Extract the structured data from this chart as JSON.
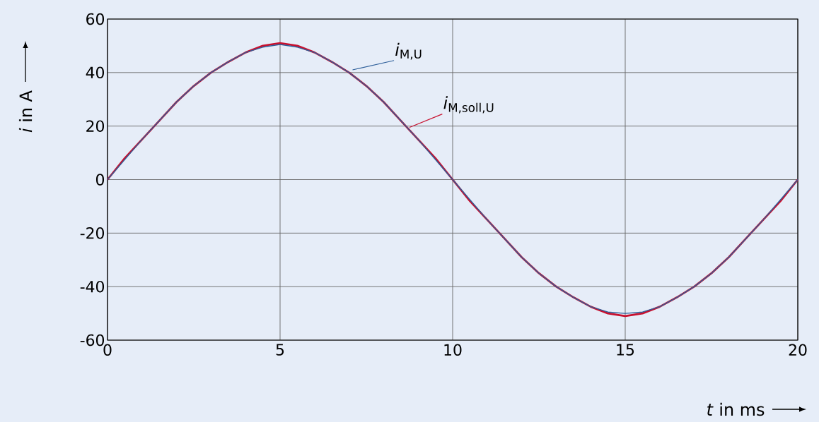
{
  "chart_data": {
    "type": "line",
    "xlabel": "*t* in ms",
    "ylabel": "*i* in A",
    "x": [
      0,
      0.5,
      1,
      1.5,
      2,
      2.5,
      3,
      3.5,
      4,
      4.5,
      5,
      5.5,
      6,
      6.5,
      7,
      7.5,
      8,
      8.5,
      9,
      9.5,
      10,
      10.5,
      11,
      11.5,
      12,
      12.5,
      13,
      13.5,
      14,
      14.5,
      15,
      15.5,
      16,
      16.5,
      17,
      17.5,
      18,
      18.5,
      19,
      19.5,
      20
    ],
    "series": [
      {
        "name": "*i*$_{M,soll,U}$",
        "color": "#c8102e",
        "values": [
          0,
          8,
          15,
          22,
          29,
          35,
          40,
          44,
          47.5,
          50,
          51,
          50,
          47.5,
          44,
          40,
          35,
          29,
          22,
          15,
          8,
          0,
          -8,
          -15,
          -22,
          -29,
          -35,
          -40,
          -44,
          -47.5,
          -50,
          -51,
          -50,
          -47.5,
          -44,
          -40,
          -35,
          -29,
          -22,
          -15,
          -8,
          0
        ]
      },
      {
        "name": "*i*$_{M,U}$",
        "color": "#2e5f9a",
        "values": [
          0,
          7.5,
          15,
          22,
          29,
          35,
          40,
          44,
          47.5,
          49.5,
          50.5,
          49.5,
          47.5,
          44,
          40,
          35,
          29,
          22,
          15,
          7.5,
          0,
          -7.5,
          -15,
          -22,
          -29,
          -35,
          -40,
          -44,
          -47.5,
          -49.5,
          -50,
          -49.5,
          -47.5,
          -44,
          -40,
          -35,
          -29,
          -22,
          -15,
          -7.5,
          0
        ]
      }
    ],
    "xlim": [
      0,
      20
    ],
    "ylim": [
      -60,
      60
    ],
    "xticks": [
      0,
      5,
      10,
      15,
      20
    ],
    "yticks": [
      -60,
      -40,
      -20,
      0,
      20,
      40,
      60
    ],
    "grid": true,
    "marker": "none",
    "line_style": "solid"
  }
}
